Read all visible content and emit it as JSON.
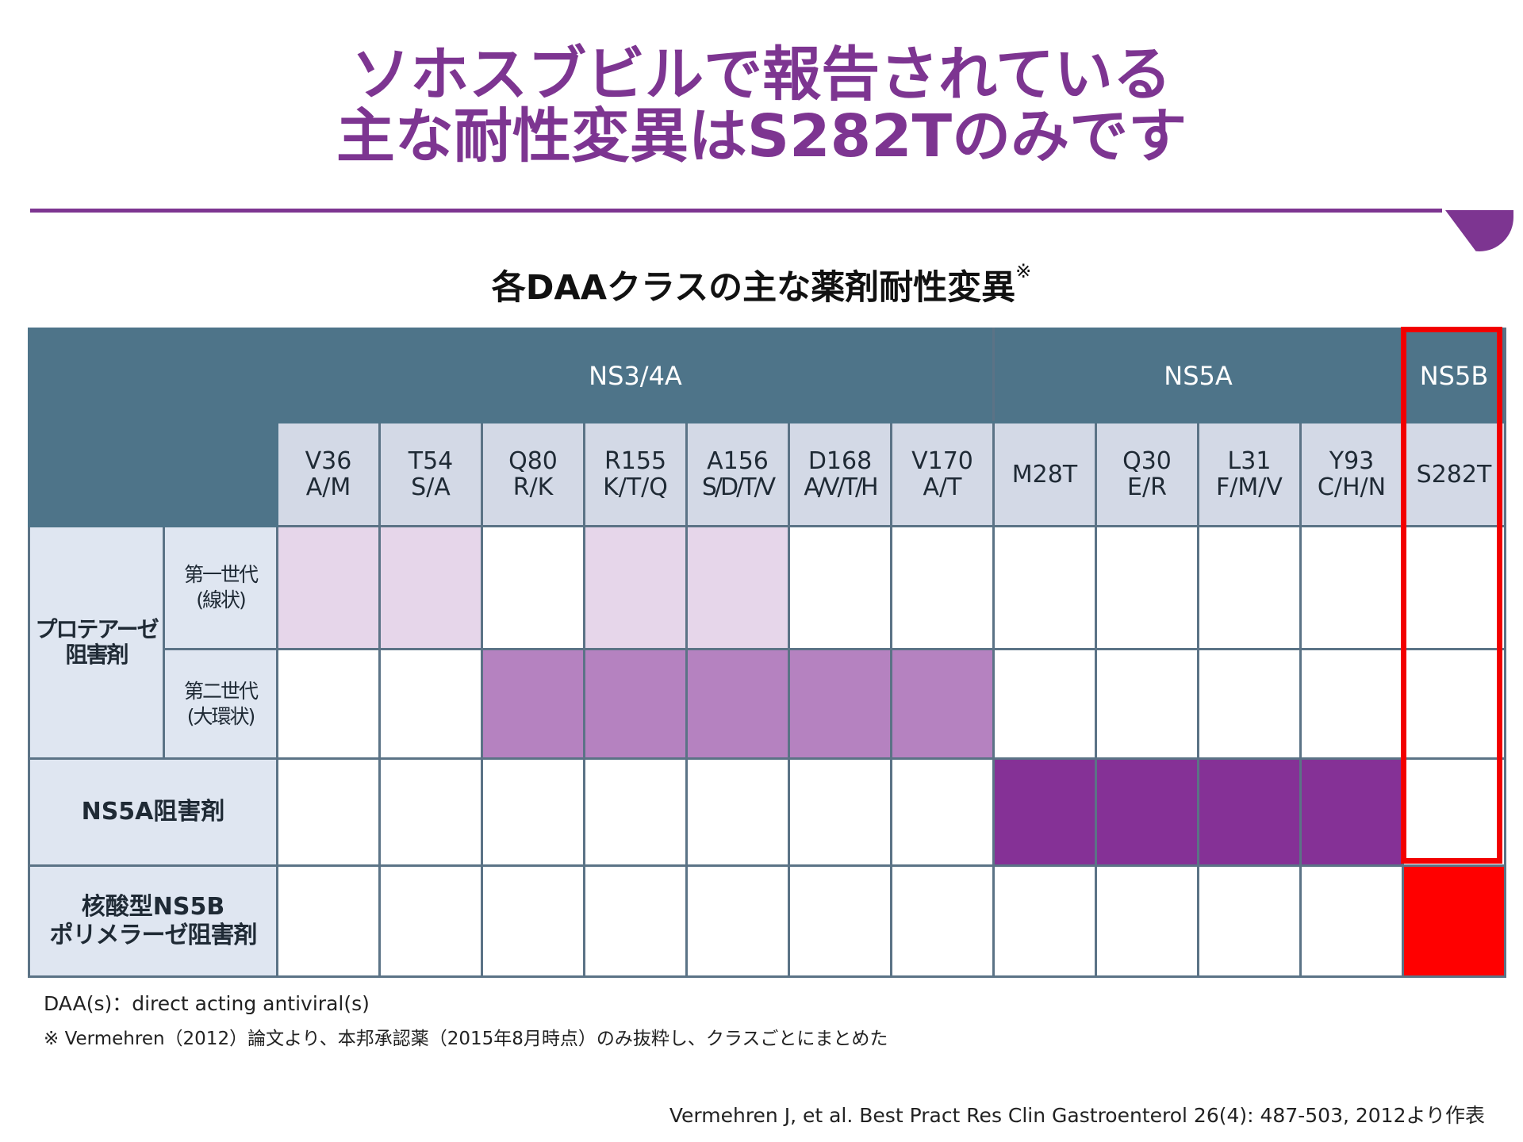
{
  "title": {
    "line1": "ソホスブビルで報告されている",
    "line2": "主な耐性変異はS282Tのみです"
  },
  "subtitle": {
    "text": "各DAAクラスの主な薬剤耐性変異",
    "mark": "※"
  },
  "table": {
    "groups": [
      "NS3/4A",
      "NS5A",
      "NS5B"
    ],
    "columns": [
      {
        "l1": "V36",
        "l2": "A/M"
      },
      {
        "l1": "T54",
        "l2": "S/A"
      },
      {
        "l1": "Q80",
        "l2": "R/K"
      },
      {
        "l1": "R155",
        "l2": "K/T/Q"
      },
      {
        "l1": "A156",
        "l2": "S/D/T/V"
      },
      {
        "l1": "D168",
        "l2": "A/V/T/H"
      },
      {
        "l1": "V170",
        "l2": "A/T"
      },
      {
        "l1": "M28T",
        "l2": ""
      },
      {
        "l1": "Q30",
        "l2": "E/R"
      },
      {
        "l1": "L31",
        "l2": "F/M/V"
      },
      {
        "l1": "Y93",
        "l2": "C/H/N"
      },
      {
        "l1": "S282T",
        "l2": ""
      }
    ],
    "rows": {
      "protease": {
        "l1": "プロテアーゼ",
        "l2": "阻害剤"
      },
      "gen1": {
        "l1": "第一世代",
        "l2": "(線状)"
      },
      "gen2": {
        "l1": "第二世代",
        "l2": "(大環状)"
      },
      "ns5a": {
        "l1": "NS5A阻害剤"
      },
      "ns5b": {
        "l1": "核酸型NS5B",
        "l2": "ポリメラーゼ阻害剤"
      }
    },
    "cell_levels": {
      "gen1": [
        "light",
        "light",
        "none",
        "light",
        "light",
        "none",
        "none",
        "none",
        "none",
        "none",
        "none",
        "none"
      ],
      "gen2": [
        "none",
        "none",
        "mid",
        "mid",
        "mid",
        "mid",
        "mid",
        "none",
        "none",
        "none",
        "none",
        "none"
      ],
      "ns5a": [
        "none",
        "none",
        "none",
        "none",
        "none",
        "none",
        "none",
        "dark",
        "dark",
        "dark",
        "dark",
        "none"
      ],
      "ns5b": [
        "none",
        "none",
        "none",
        "none",
        "none",
        "none",
        "none",
        "none",
        "none",
        "none",
        "none",
        "red"
      ]
    },
    "colors": {
      "header": "#4e7489",
      "light": "#e6d6ea",
      "mid": "#b582c0",
      "dark": "#853196",
      "red": "#ff0000",
      "accent": "#7d3591"
    }
  },
  "notes": {
    "abbr": "DAA(s)：direct acting antiviral(s)",
    "source_note": "※ Vermehren（2012）論文より、本邦承認薬（2015年8月時点）のみ抜粋し、クラスごとにまとめた"
  },
  "citation": "Vermehren J, et al. Best Pract Res Clin Gastroenterol 26(4): 487-503, 2012より作表"
}
